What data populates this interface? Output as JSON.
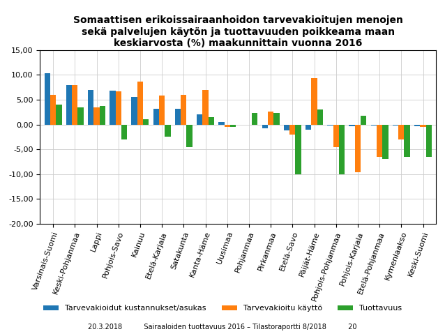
{
  "chart_data": {
    "type": "bar",
    "title": "Somaattisen erikoissairaanhoidon tarvevakioitujen menojen\nsekä palvelujen käytön ja tuottavuuden poikkeama maan\nkeskiarvosta (%) maakunnittain vuonna 2016",
    "annotations": [
      "20.3.2018          Sairaaloiden tuottavuus 2016 – Tilastoraportti 8/2018          20"
    ],
    "categories": [
      "Varsinais-Suomi",
      "Keski-Pohjanmaa",
      "Lappi",
      "Pohjois-Savo",
      "Kainuu",
      "Etelä-Karjala",
      "Satakunta",
      "Kanta-Häme",
      "Uusimaa",
      "Pohjanmaa",
      "Pirkanmaa",
      "Etelä-Savo",
      "Päijät-Häme",
      "Pohjois-Pohjanmaa",
      "Pohjois-Karjala",
      "Etelä-Pohjanmaa",
      "Kymenlaakso",
      "Keski-Suomi"
    ],
    "series": [
      {
        "name": "Tarvevakioidut kustannukset/asukas",
        "values": [
          10.3,
          7.9,
          7.0,
          6.8,
          5.5,
          3.2,
          3.2,
          2.0,
          0.5,
          -0.1,
          -0.7,
          -1.2,
          -1.0,
          -0.2,
          -0.3,
          -0.2,
          -0.2,
          -0.3
        ]
      },
      {
        "name": "Tarvevakioitu käyttö",
        "values": [
          6.0,
          8.0,
          3.5,
          6.7,
          8.7,
          5.9,
          6.0,
          7.0,
          -0.5,
          -0.1,
          2.6,
          -2.0,
          9.4,
          -4.5,
          -9.6,
          -6.5,
          -3.0,
          -0.5
        ]
      },
      {
        "name": "Tuottavuus",
        "values": [
          4.0,
          3.5,
          3.8,
          -3.0,
          1.0,
          -2.5,
          -4.5,
          1.5,
          -0.5,
          2.4,
          2.3,
          -10.0,
          3.0,
          -10.0,
          1.8,
          -7.0,
          -6.5,
          -6.5
        ]
      }
    ],
    "ylim": [
      -20,
      15
    ],
    "yticks": [
      {
        "value": -20,
        "label": "-20,00"
      },
      {
        "value": -15,
        "label": "-15,00"
      },
      {
        "value": -10,
        "label": "-10,00"
      },
      {
        "value": -5,
        "label": "-5,00"
      },
      {
        "value": 0,
        "label": "0,00"
      },
      {
        "value": 5,
        "label": "5,00"
      },
      {
        "value": 10,
        "label": "10,00"
      },
      {
        "value": 15,
        "label": "15,00"
      }
    ],
    "grid": true,
    "legend": "lower center"
  }
}
